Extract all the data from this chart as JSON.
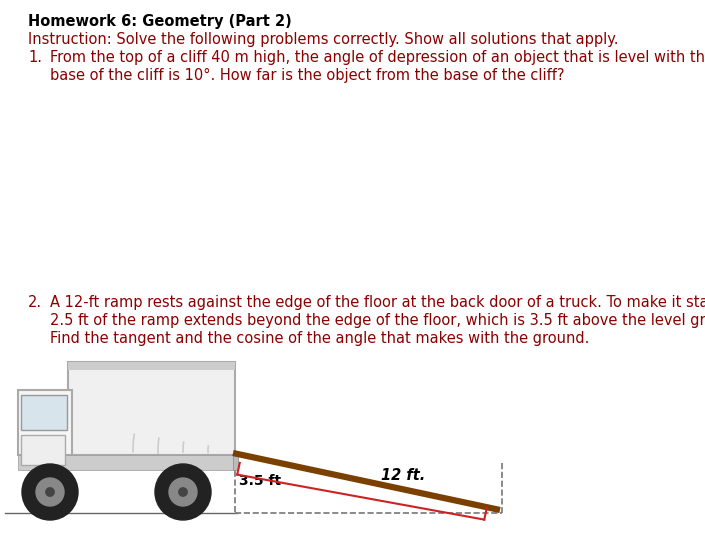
{
  "title": "Homework 6: Geometry (Part 2)",
  "instruction": "Instruction: Solve the following problems correctly. Show all solutions that apply.",
  "p1_num": "1.",
  "p1_line1": "From the top of a cliff 40 m high, the angle of depression of an object that is level with the",
  "p1_line2": "base of the cliff is 10°. How far is the object from the base of the cliff?",
  "p2_num": "2.",
  "p2_line1": "A 12-ft ramp rests against the edge of the floor at the back door of a truck. To make it stable",
  "p2_line2": "2.5 ft of the ramp extends beyond the edge of the floor, which is 3.5 ft above the level ground.",
  "p2_line3": "Find the tangent and the cosine of the angle that makes with the ground.",
  "label_12ft": "12 ft.",
  "label_35ft": "3.5 ft",
  "title_color": "#000000",
  "text_color": "#8B0000",
  "bg_color": "#ffffff",
  "ramp_color": "#7B3F00",
  "red_line_color": "#cc2222",
  "dashed_color": "#777777",
  "label_color": "#000000",
  "fontsize": 10.5
}
